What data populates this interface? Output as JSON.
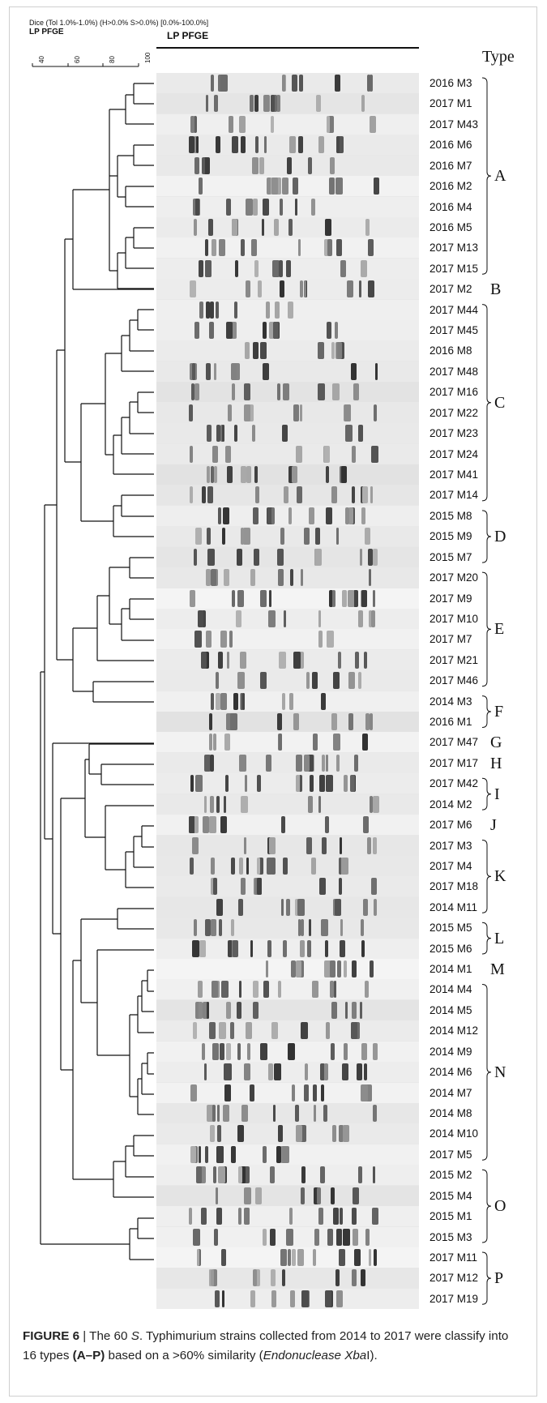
{
  "header": {
    "settings": "Dice (Tol 1.0%-1.0%) (H>0.0% S>0.0%) [0.0%-100.0%]",
    "label_left": "LP PFGE",
    "label_center": "LP PFGE"
  },
  "scale": {
    "ticks": [
      "40",
      "60",
      "80",
      "100"
    ]
  },
  "type_header": "Type",
  "strains": [
    "2016 M3",
    "2017 M1",
    "2017 M43",
    "2016 M6",
    "2016 M7",
    "2016 M2",
    "2016 M4",
    "2016 M5",
    "2017 M13",
    "2017 M15",
    "2017 M2",
    "2017 M44",
    "2017 M45",
    "2016 M8",
    "2017 M48",
    "2017 M16",
    "2017 M22",
    "2017 M23",
    "2017 M24",
    "2017 M41",
    "2017 M14",
    "2015 M8",
    "2015 M9",
    "2015 M7",
    "2017 M20",
    "2017 M9",
    "2017 M10",
    "2017 M7",
    "2017 M21",
    "2017 M46",
    "2014 M3",
    "2016 M1",
    "2017 M47",
    "2017 M17",
    "2017 M42",
    "2014 M2",
    "2017 M6",
    "2017 M3",
    "2017 M4",
    "2017 M18",
    "2014 M11",
    "2015 M5",
    "2015 M6",
    "2014 M1",
    "2014 M4",
    "2014 M5",
    "2014 M12",
    "2014 M9",
    "2014 M6",
    "2014 M7",
    "2014 M8",
    "2014 M10",
    "2017 M5",
    "2015 M2",
    "2015 M4",
    "2015 M1",
    "2015 M3",
    "2017 M11",
    "2017 M12",
    "2017 M19"
  ],
  "types": [
    {
      "letter": "A",
      "start": 0,
      "end": 9
    },
    {
      "letter": "B",
      "start": 10,
      "end": 10
    },
    {
      "letter": "C",
      "start": 11,
      "end": 20
    },
    {
      "letter": "D",
      "start": 21,
      "end": 23
    },
    {
      "letter": "E",
      "start": 24,
      "end": 29
    },
    {
      "letter": "F",
      "start": 30,
      "end": 31
    },
    {
      "letter": "G",
      "start": 32,
      "end": 32
    },
    {
      "letter": "H",
      "start": 33,
      "end": 33
    },
    {
      "letter": "I",
      "start": 34,
      "end": 35
    },
    {
      "letter": "J",
      "start": 36,
      "end": 36
    },
    {
      "letter": "K",
      "start": 37,
      "end": 40
    },
    {
      "letter": "L",
      "start": 41,
      "end": 42
    },
    {
      "letter": "M",
      "start": 43,
      "end": 43
    },
    {
      "letter": "N",
      "start": 44,
      "end": 52
    },
    {
      "letter": "O",
      "start": 53,
      "end": 56
    },
    {
      "letter": "P",
      "start": 57,
      "end": 59
    }
  ],
  "caption": {
    "fig": "FIGURE 6",
    "bar": " | ",
    "t1": "The 60 ",
    "italic1": "S",
    "t2": ". Typhimurium strains collected from 2014 to 2017 were classify into 16 types ",
    "bold2": "(A–P)",
    "t3": " based on a >60% similarity (",
    "italic2": "Endonuclease Xba",
    "t4": "I)."
  },
  "colors": {
    "band": "#4a4a4a",
    "lane_bg": "#e6e6e6",
    "line": "#111111"
  }
}
